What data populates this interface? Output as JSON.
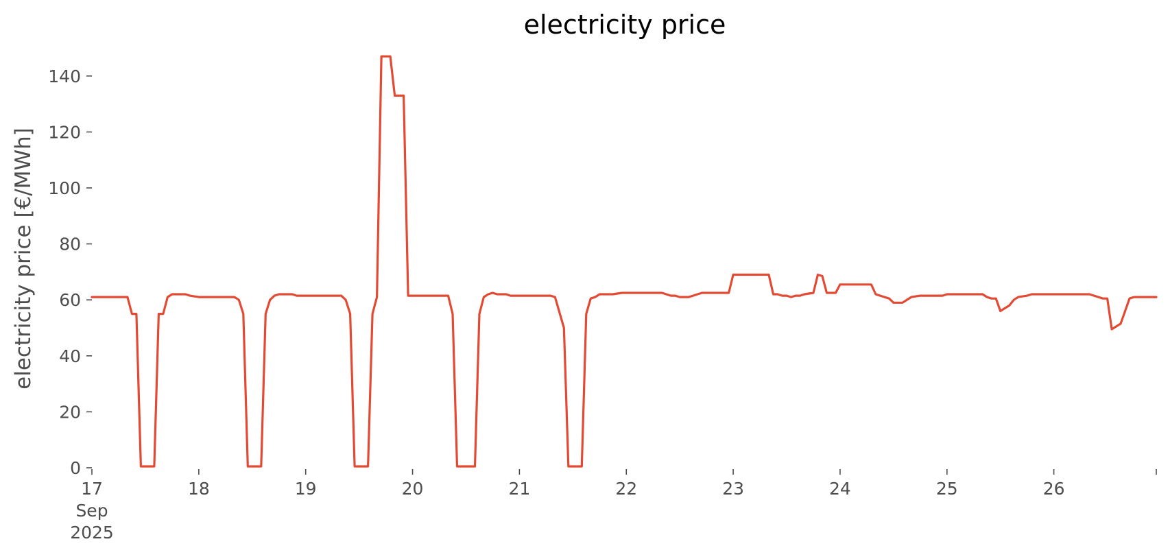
{
  "chart_data": {
    "type": "line",
    "title": "electricity price",
    "xlabel": "",
    "ylabel": "electricity price [€/MWh]",
    "ylim": [
      0,
      150
    ],
    "yticks": [
      0,
      20,
      40,
      60,
      80,
      100,
      120,
      140
    ],
    "xlim": [
      "2025-09-17T00:00",
      "2025-09-26T23:00"
    ],
    "xticks": [
      {
        "date": "2025-09-17",
        "lines": [
          "17",
          "Sep",
          "2025"
        ]
      },
      {
        "date": "2025-09-18",
        "lines": [
          "18"
        ]
      },
      {
        "date": "2025-09-19",
        "lines": [
          "19"
        ]
      },
      {
        "date": "2025-09-20",
        "lines": [
          "20"
        ]
      },
      {
        "date": "2025-09-21",
        "lines": [
          "21"
        ]
      },
      {
        "date": "2025-09-22",
        "lines": [
          "22"
        ]
      },
      {
        "date": "2025-09-23",
        "lines": [
          "23"
        ]
      },
      {
        "date": "2025-09-24",
        "lines": [
          "24"
        ]
      },
      {
        "date": "2025-09-25",
        "lines": [
          "25"
        ]
      },
      {
        "date": "2025-09-26",
        "lines": [
          "26"
        ]
      }
    ],
    "grid": false,
    "legend": "none",
    "series": [
      {
        "color": "#e24a33",
        "points": [
          [
            "2025-09-17T00:00",
            61
          ],
          [
            "2025-09-17T06:00",
            61
          ],
          [
            "2025-09-17T08:00",
            61
          ],
          [
            "2025-09-17T09:00",
            55
          ],
          [
            "2025-09-17T10:00",
            55
          ],
          [
            "2025-09-17T11:00",
            0.5
          ],
          [
            "2025-09-17T14:00",
            0.5
          ],
          [
            "2025-09-17T15:00",
            55
          ],
          [
            "2025-09-17T16:00",
            55
          ],
          [
            "2025-09-17T17:00",
            61
          ],
          [
            "2025-09-17T18:00",
            62
          ],
          [
            "2025-09-17T21:00",
            62
          ],
          [
            "2025-09-17T22:00",
            61.5
          ],
          [
            "2025-09-18T00:00",
            61
          ],
          [
            "2025-09-18T06:00",
            61
          ],
          [
            "2025-09-18T08:00",
            61
          ],
          [
            "2025-09-18T09:00",
            60
          ],
          [
            "2025-09-18T10:00",
            55
          ],
          [
            "2025-09-18T11:00",
            0.5
          ],
          [
            "2025-09-18T14:00",
            0.5
          ],
          [
            "2025-09-18T15:00",
            55
          ],
          [
            "2025-09-18T16:00",
            60
          ],
          [
            "2025-09-18T17:00",
            61.5
          ],
          [
            "2025-09-18T18:00",
            62
          ],
          [
            "2025-09-18T21:00",
            62
          ],
          [
            "2025-09-18T22:00",
            61.5
          ],
          [
            "2025-09-19T00:00",
            61.5
          ],
          [
            "2025-09-19T06:00",
            61.5
          ],
          [
            "2025-09-19T08:00",
            61.5
          ],
          [
            "2025-09-19T09:00",
            60
          ],
          [
            "2025-09-19T10:00",
            55
          ],
          [
            "2025-09-19T11:00",
            0.5
          ],
          [
            "2025-09-19T14:00",
            0.5
          ],
          [
            "2025-09-19T15:00",
            55
          ],
          [
            "2025-09-19T16:00",
            61
          ],
          [
            "2025-09-19T17:00",
            147
          ],
          [
            "2025-09-19T19:00",
            147
          ],
          [
            "2025-09-19T20:00",
            133
          ],
          [
            "2025-09-19T22:00",
            133
          ],
          [
            "2025-09-19T23:00",
            61.5
          ],
          [
            "2025-09-20T06:00",
            61.5
          ],
          [
            "2025-09-20T08:00",
            61.5
          ],
          [
            "2025-09-20T09:00",
            55
          ],
          [
            "2025-09-20T10:00",
            0.5
          ],
          [
            "2025-09-20T14:00",
            0.5
          ],
          [
            "2025-09-20T15:00",
            55
          ],
          [
            "2025-09-20T16:00",
            61
          ],
          [
            "2025-09-20T17:00",
            62
          ],
          [
            "2025-09-20T18:00",
            62.5
          ],
          [
            "2025-09-20T19:00",
            62
          ],
          [
            "2025-09-20T21:00",
            62
          ],
          [
            "2025-09-20T22:00",
            61.5
          ],
          [
            "2025-09-21T06:00",
            61.5
          ],
          [
            "2025-09-21T07:00",
            61.5
          ],
          [
            "2025-09-21T08:00",
            61
          ],
          [
            "2025-09-21T10:00",
            50
          ],
          [
            "2025-09-21T11:00",
            0.5
          ],
          [
            "2025-09-21T14:00",
            0.5
          ],
          [
            "2025-09-21T15:00",
            55
          ],
          [
            "2025-09-21T16:00",
            60.5
          ],
          [
            "2025-09-21T17:00",
            61
          ],
          [
            "2025-09-21T18:00",
            62
          ],
          [
            "2025-09-21T21:00",
            62
          ],
          [
            "2025-09-21T23:00",
            62.5
          ],
          [
            "2025-09-22T06:00",
            62.5
          ],
          [
            "2025-09-22T08:00",
            62.5
          ],
          [
            "2025-09-22T10:00",
            61.5
          ],
          [
            "2025-09-22T11:00",
            61.5
          ],
          [
            "2025-09-22T12:00",
            61
          ],
          [
            "2025-09-22T14:00",
            61
          ],
          [
            "2025-09-22T16:00",
            62
          ],
          [
            "2025-09-22T17:00",
            62.5
          ],
          [
            "2025-09-22T21:00",
            62.5
          ],
          [
            "2025-09-22T23:00",
            62.5
          ],
          [
            "2025-09-23T00:00",
            69
          ],
          [
            "2025-09-23T06:00",
            69
          ],
          [
            "2025-09-23T08:00",
            69
          ],
          [
            "2025-09-23T09:00",
            62
          ],
          [
            "2025-09-23T10:00",
            62
          ],
          [
            "2025-09-23T11:00",
            61.5
          ],
          [
            "2025-09-23T12:00",
            61.5
          ],
          [
            "2025-09-23T13:00",
            61
          ],
          [
            "2025-09-23T14:00",
            61.5
          ],
          [
            "2025-09-23T15:00",
            61.5
          ],
          [
            "2025-09-23T16:00",
            62
          ],
          [
            "2025-09-23T18:00",
            62.5
          ],
          [
            "2025-09-23T19:00",
            69
          ],
          [
            "2025-09-23T20:00",
            68.5
          ],
          [
            "2025-09-23T21:00",
            62.5
          ],
          [
            "2025-09-23T23:00",
            62.5
          ],
          [
            "2025-09-24T00:00",
            65.5
          ],
          [
            "2025-09-24T03:00",
            65.5
          ],
          [
            "2025-09-24T07:00",
            65.5
          ],
          [
            "2025-09-24T08:00",
            62
          ],
          [
            "2025-09-24T09:00",
            61.5
          ],
          [
            "2025-09-24T11:00",
            60.5
          ],
          [
            "2025-09-24T12:00",
            59
          ],
          [
            "2025-09-24T14:00",
            59
          ],
          [
            "2025-09-24T16:00",
            61
          ],
          [
            "2025-09-24T18:00",
            61.5
          ],
          [
            "2025-09-24T19:00",
            61.5
          ],
          [
            "2025-09-24T23:00",
            61.5
          ],
          [
            "2025-09-25T00:00",
            62
          ],
          [
            "2025-09-25T04:00",
            62
          ],
          [
            "2025-09-25T08:00",
            62
          ],
          [
            "2025-09-25T09:00",
            61
          ],
          [
            "2025-09-25T10:00",
            60.5
          ],
          [
            "2025-09-25T11:00",
            60.5
          ],
          [
            "2025-09-25T12:00",
            56
          ],
          [
            "2025-09-25T13:00",
            57
          ],
          [
            "2025-09-25T14:00",
            58
          ],
          [
            "2025-09-25T15:00",
            60
          ],
          [
            "2025-09-25T16:00",
            61
          ],
          [
            "2025-09-25T18:00",
            61.5
          ],
          [
            "2025-09-25T19:00",
            62
          ],
          [
            "2025-09-26T00:00",
            62
          ],
          [
            "2025-09-26T04:00",
            62
          ],
          [
            "2025-09-26T08:00",
            62
          ],
          [
            "2025-09-26T10:00",
            61
          ],
          [
            "2025-09-26T11:00",
            60.5
          ],
          [
            "2025-09-26T12:00",
            60.5
          ],
          [
            "2025-09-26T13:00",
            49.5
          ],
          [
            "2025-09-26T15:00",
            51.5
          ],
          [
            "2025-09-26T17:00",
            60.5
          ],
          [
            "2025-09-26T18:00",
            61
          ],
          [
            "2025-09-26T23:00",
            61
          ]
        ]
      }
    ]
  }
}
